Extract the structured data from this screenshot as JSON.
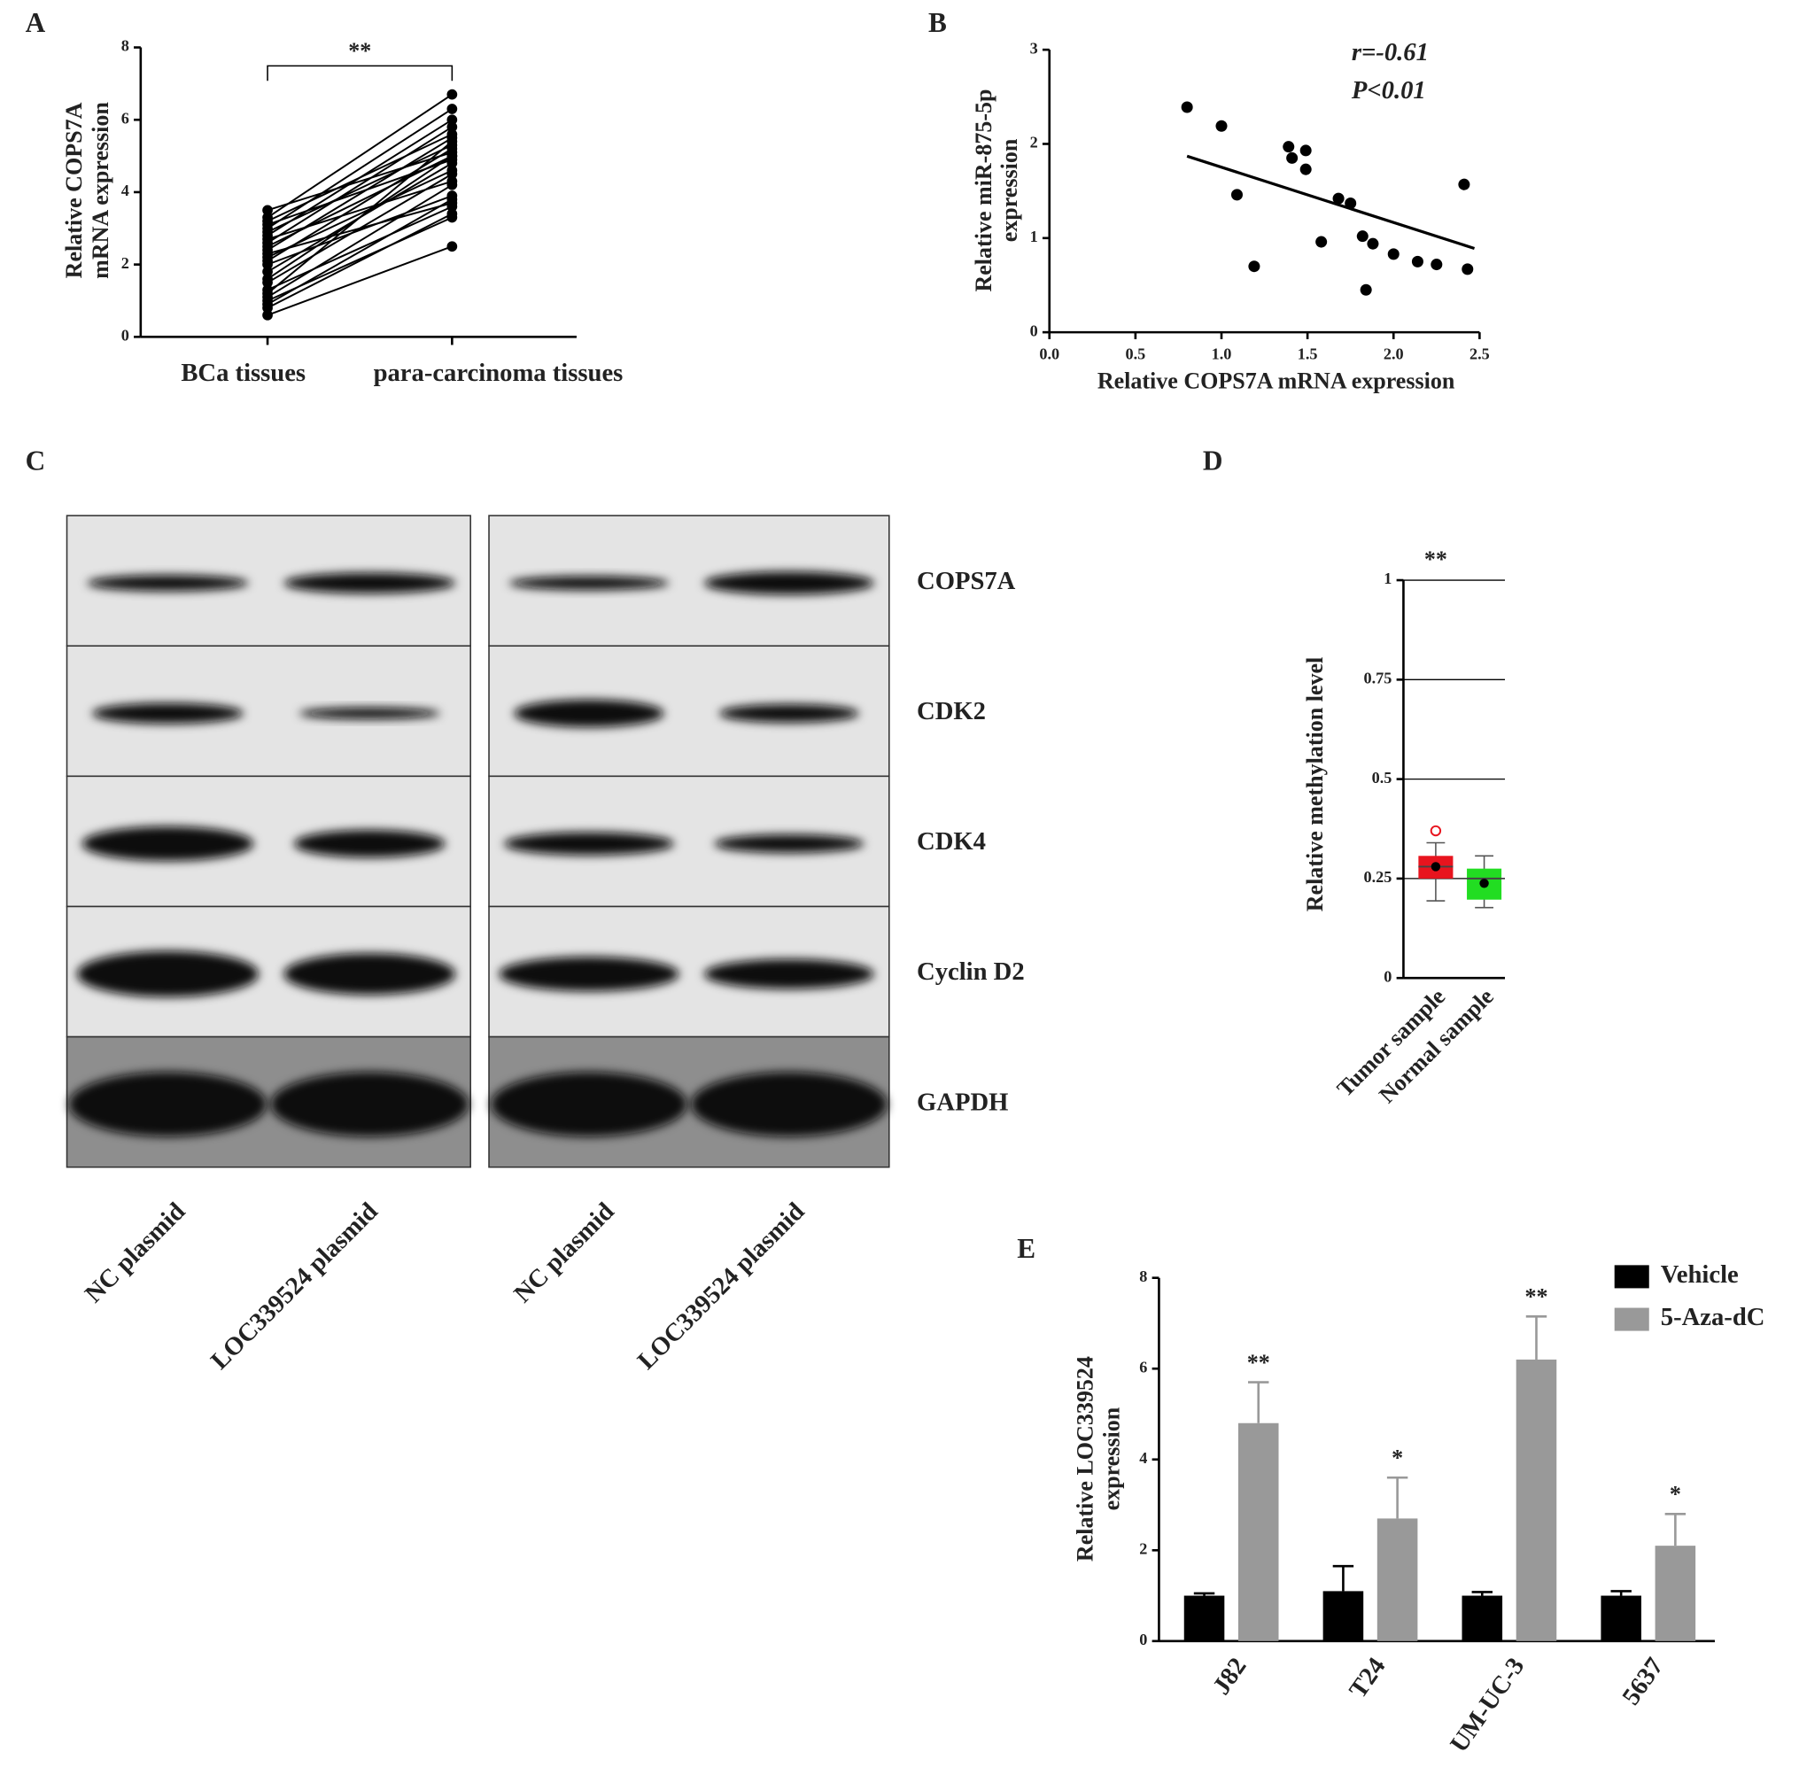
{
  "chart_data": [
    {
      "type": "paired",
      "panel": "A",
      "ylabel": [
        "Relative COPS7A",
        "mRNA expression"
      ],
      "categories": [
        "BCa tissues",
        "para-carcinoma tissues"
      ],
      "values": [
        [
          0.6,
          2.5
        ],
        [
          0.8,
          3.4
        ],
        [
          0.9,
          3.8
        ],
        [
          1.0,
          3.3
        ],
        [
          1.1,
          4.2
        ],
        [
          1.3,
          3.6
        ],
        [
          1.5,
          4.5
        ],
        [
          1.6,
          5.0
        ],
        [
          1.8,
          4.8
        ],
        [
          2.0,
          3.9
        ],
        [
          2.1,
          5.2
        ],
        [
          2.2,
          4.6
        ],
        [
          2.4,
          5.5
        ],
        [
          2.5,
          5.0
        ],
        [
          2.6,
          5.8
        ],
        [
          2.7,
          4.3
        ],
        [
          2.8,
          6.0
        ],
        [
          2.9,
          5.3
        ],
        [
          3.0,
          6.3
        ],
        [
          3.1,
          4.9
        ],
        [
          3.2,
          5.6
        ],
        [
          3.3,
          6.7
        ],
        [
          3.5,
          5.1
        ],
        [
          1.2,
          5.4
        ],
        [
          2.3,
          3.7
        ]
      ],
      "annotation": "**",
      "color": "#000000",
      "ylim": [
        0,
        8
      ],
      "yticks": [
        0,
        2,
        4,
        6,
        8
      ],
      "grid": false
    },
    {
      "type": "scatter",
      "panel": "B",
      "ylabel": [
        "Relative miR-875-5p",
        "expression"
      ],
      "xlabel": "Relative COPS7A mRNA expression",
      "annotations": [
        "r=-0.61",
        "P<0.01"
      ],
      "x": [
        0.8,
        1.0,
        1.09,
        1.19,
        1.39,
        1.41,
        1.49,
        1.49,
        1.58,
        1.68,
        1.75,
        1.82,
        1.88,
        1.84,
        2.0,
        2.14,
        2.25,
        2.41,
        2.43
      ],
      "y": [
        2.39,
        2.19,
        1.46,
        0.7,
        1.97,
        1.85,
        1.93,
        1.73,
        0.96,
        1.42,
        1.37,
        1.02,
        0.94,
        0.45,
        0.83,
        0.75,
        0.72,
        1.57,
        0.67
      ],
      "fit": {
        "x": [
          0.8,
          2.47
        ],
        "y": [
          1.87,
          0.89
        ]
      },
      "color": "#000000",
      "xlim": [
        0,
        2.5
      ],
      "xticks": [
        {
          "value": 0,
          "label": "0.0"
        },
        0.5,
        {
          "value": 1,
          "label": "1.0"
        },
        1.5,
        {
          "value": 2,
          "label": "2.0"
        },
        2.5
      ],
      "ylim": [
        0,
        3
      ],
      "yticks": [
        0,
        1,
        2,
        3
      ],
      "grid": false
    },
    {
      "type": "box",
      "panel": "D",
      "ylabel": "Relative methylation level",
      "annotation": "**",
      "categories": [
        "Tumor sample",
        "Normal sample"
      ],
      "colors": [
        "#e8141e",
        "#22dd22"
      ],
      "boxes": [
        {
          "min": 0.194,
          "q1": 0.25,
          "median": 0.28,
          "q3": 0.307,
          "max": 0.34,
          "mean": 0.28,
          "outliers": [
            0.37
          ]
        },
        {
          "min": 0.177,
          "q1": 0.197,
          "median": 0.25,
          "q3": 0.275,
          "max": 0.307,
          "mean": 0.238,
          "outliers": []
        }
      ],
      "ylim": [
        0,
        1
      ],
      "yticks": [
        0,
        0.25,
        0.5,
        0.75,
        1
      ],
      "grid": true
    },
    {
      "type": "bar",
      "panel": "E",
      "ylabel": [
        "Relative LOC339524",
        "expression"
      ],
      "categories": [
        "J82",
        "T24",
        "UM-UC-3",
        "5637"
      ],
      "series": [
        {
          "name": "Vehicle",
          "color": "#000000",
          "values": [
            1.0,
            1.1,
            1.0,
            1.0
          ],
          "errors": [
            0.05,
            0.55,
            0.08,
            0.1
          ]
        },
        {
          "name": "5-Aza-dC",
          "color": "#999999",
          "values": [
            4.8,
            2.7,
            6.2,
            2.1
          ],
          "errors": [
            0.9,
            0.9,
            0.95,
            0.7
          ]
        }
      ],
      "annotations": [
        "**",
        "*",
        "**",
        "*"
      ],
      "legend": "top-right",
      "ylim": [
        0,
        8
      ],
      "yticks": [
        0,
        2,
        4,
        6,
        8
      ],
      "grid": false
    }
  ],
  "blot": {
    "panel": "C",
    "proteins": [
      "COPS7A",
      "CDK2",
      "CDK4",
      "Cyclin D2",
      "GAPDH"
    ],
    "lanes": [
      "NC plasmid",
      "LOC339524 plasmid",
      "NC plasmid",
      "LOC339524 plasmid"
    ]
  }
}
